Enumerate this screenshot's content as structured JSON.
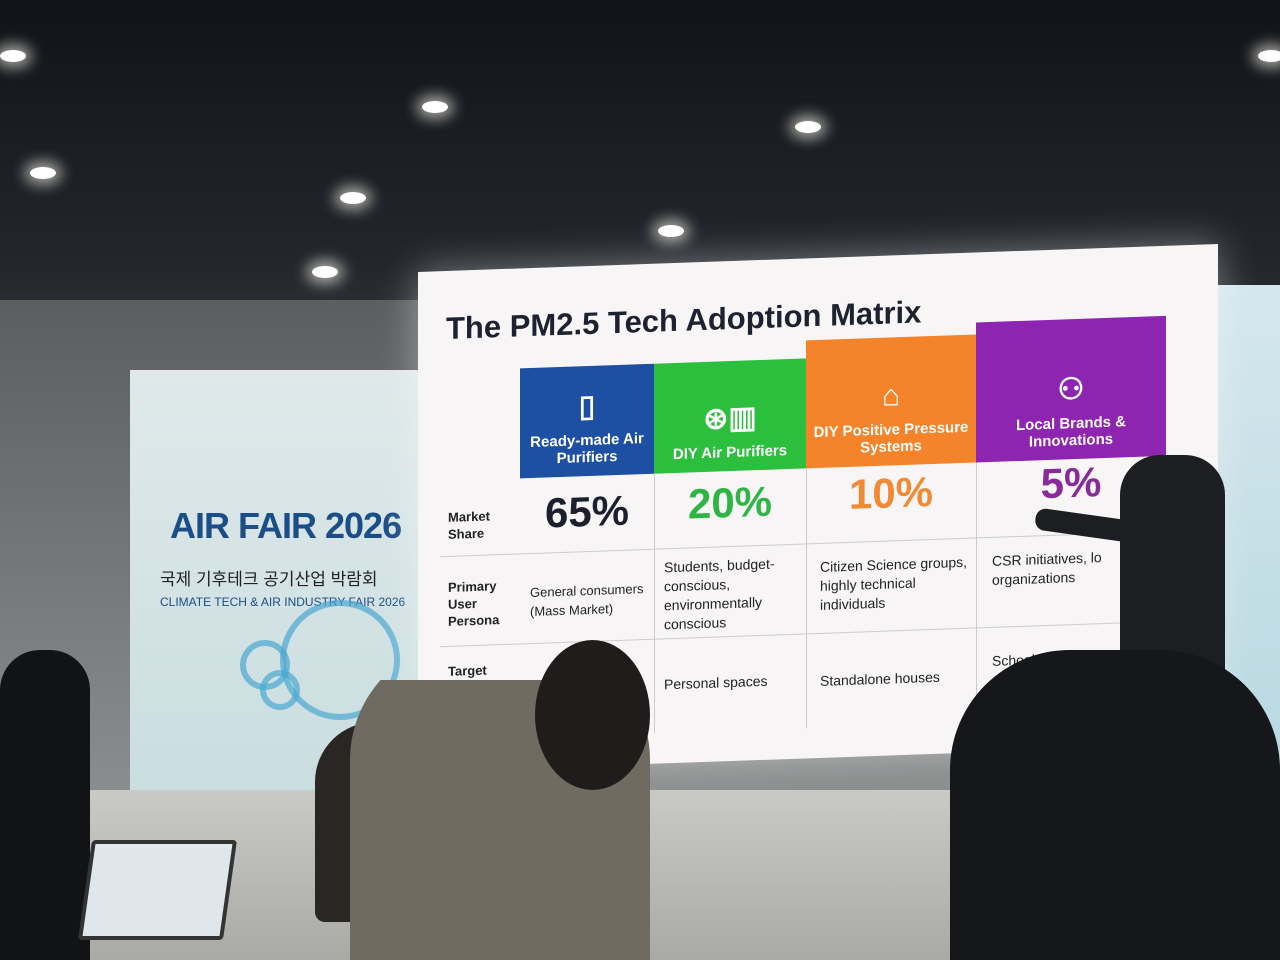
{
  "banner": {
    "title": "AIR FAIR 2026",
    "subtitle_korean": "국제 기후테크 공기산업 박람회",
    "subtitle_english": "CLIMATE TECH & AIR INDUSTRY FAIR 2026"
  },
  "slide": {
    "title": "The PM2.5 Tech Adoption Matrix",
    "row_labels": [
      "Market Share",
      "Primary User Persona",
      "Target Environment"
    ],
    "columns": [
      {
        "header": "Ready-made Air Purifiers",
        "icon": "air-purifier-icon",
        "color": "#1d4fa3",
        "share": "65%",
        "share_color": "#1c1f2e",
        "persona": "General consumers (Mass Market)",
        "environment": ""
      },
      {
        "header": "DIY Air Purifiers",
        "icon": "fan-filter-icon",
        "color": "#2cbf3d",
        "share": "20%",
        "share_color": "#2fb545",
        "persona": "Students, budget-conscious, environmentally conscious",
        "environment": "Personal spaces"
      },
      {
        "header": "DIY Positive Pressure Systems",
        "icon": "house-arrow-icon",
        "color": "#f5832a",
        "share": "10%",
        "share_color": "#f08a35",
        "persona": "Citizen Science groups, highly technical individuals",
        "environment": "Standalone houses"
      },
      {
        "header": "Local Brands & Innovations",
        "icon": "network-people-icon",
        "color": "#8e25b0",
        "share": "5%",
        "share_color": "#8a2a9a",
        "persona": "CSR initiatives, lo organizations",
        "environment": "Schools, Child centers"
      }
    ]
  }
}
